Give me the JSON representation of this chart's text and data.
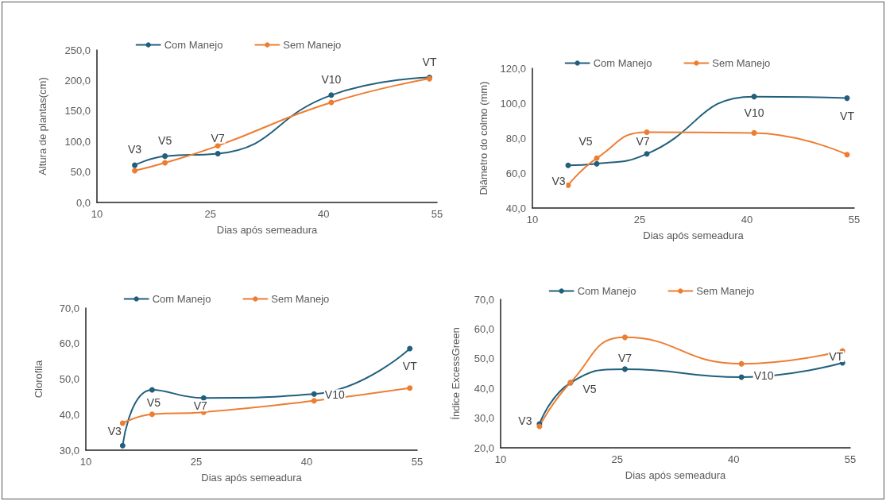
{
  "chart_data": [
    {
      "type": "line",
      "xlabel": "Dias após semeadura",
      "ylabel": "Altura de plantas(cm)",
      "x": [
        15,
        19,
        26,
        41,
        54
      ],
      "xlim": [
        10,
        55
      ],
      "xticks": [
        10,
        25,
        40,
        55
      ],
      "ylim": [
        0,
        250
      ],
      "yticks": [
        {
          "value": 0,
          "label": "0,0"
        },
        {
          "value": 50,
          "label": "50,0"
        },
        {
          "value": 100,
          "label": "100,0"
        },
        {
          "value": 150,
          "label": "150,0"
        },
        {
          "value": 200,
          "label": "200,0"
        },
        {
          "value": 250,
          "label": "250,0"
        }
      ],
      "grid": false,
      "legend": "top",
      "marker": "circle",
      "series": [
        {
          "name": "Com Manejo",
          "color": "#215f7d",
          "values": [
            61,
            76,
            80,
            176,
            205
          ]
        },
        {
          "name": "Sem Manejo",
          "color": "#ed7d31",
          "values": [
            52,
            65,
            93,
            164,
            203
          ]
        }
      ],
      "annotations": [
        {
          "text": "V3",
          "x": 15,
          "y": 61
        },
        {
          "text": "V5",
          "x": 19,
          "y": 76
        },
        {
          "text": "V7",
          "x": 26,
          "y": 80
        },
        {
          "text": "V10",
          "x": 41,
          "y": 176
        },
        {
          "text": "VT",
          "x": 54,
          "y": 205
        }
      ]
    },
    {
      "type": "line",
      "xlabel": "Dias após semeadura",
      "ylabel": "Diâmetro do colmo (mm)",
      "x": [
        15,
        19,
        26,
        41,
        54
      ],
      "xlim": [
        10,
        55
      ],
      "xticks": [
        10,
        25,
        40,
        55
      ],
      "ylim": [
        40,
        120
      ],
      "yticks": [
        {
          "value": 40,
          "label": "40,0"
        },
        {
          "value": 60,
          "label": "60,0"
        },
        {
          "value": 80,
          "label": "80,0"
        },
        {
          "value": 100,
          "label": "100,0"
        },
        {
          "value": 120,
          "label": "120,0"
        }
      ],
      "grid": false,
      "legend": "top",
      "marker": "circle",
      "series": [
        {
          "name": "Com Manejo",
          "color": "#215f7d",
          "values": [
            64.4,
            65.3,
            71,
            103.8,
            102.9
          ]
        },
        {
          "name": "Sem Manejo",
          "color": "#ed7d31",
          "values": [
            53.1,
            68.5,
            83.4,
            83,
            70.6
          ]
        }
      ],
      "annotations": [
        {
          "text": "V3",
          "x": 15,
          "y": 64.4
        },
        {
          "text": "V5",
          "x": 19,
          "y": 65.3
        },
        {
          "text": "V7",
          "x": 26,
          "y": 71
        },
        {
          "text": "V10",
          "x": 41,
          "y": 103.8
        },
        {
          "text": "VT",
          "x": 54,
          "y": 102.9
        }
      ]
    },
    {
      "type": "line",
      "xlabel": "Dias após semeadura",
      "ylabel": "Clorofila",
      "x": [
        15,
        19,
        26,
        41,
        54
      ],
      "xlim": [
        10,
        55
      ],
      "xticks": [
        10,
        25,
        40,
        55
      ],
      "ylim": [
        30,
        70
      ],
      "yticks": [
        {
          "value": 30,
          "label": "30,0"
        },
        {
          "value": 40,
          "label": "40,0"
        },
        {
          "value": 50,
          "label": "50,0"
        },
        {
          "value": 60,
          "label": "60,0"
        },
        {
          "value": 70,
          "label": "70,0"
        }
      ],
      "grid": false,
      "legend": "top",
      "marker": "circle",
      "series": [
        {
          "name": "Com Manejo",
          "color": "#215f7d",
          "values": [
            31.3,
            47,
            44.7,
            45.8,
            58.6
          ]
        },
        {
          "name": "Sem Manejo",
          "color": "#ed7d31",
          "values": [
            37.6,
            40.1,
            40.7,
            43.9,
            47.5
          ]
        }
      ],
      "annotations": [
        {
          "text": "V3",
          "x": 15,
          "y": 31.3
        },
        {
          "text": "V5",
          "x": 19,
          "y": 47
        },
        {
          "text": "V7",
          "x": 26,
          "y": 44.7
        },
        {
          "text": "V10",
          "x": 41,
          "y": 45.8
        },
        {
          "text": "VT",
          "x": 54,
          "y": 58.6
        }
      ]
    },
    {
      "type": "line",
      "xlabel": "Dias após semeadura",
      "ylabel": "Índice ExcessGreen",
      "x": [
        15,
        19,
        26,
        41,
        54
      ],
      "xlim": [
        10,
        55
      ],
      "xticks": [
        10,
        25,
        40,
        55
      ],
      "ylim": [
        20,
        70
      ],
      "yticks": [
        {
          "value": 20,
          "label": "20,0"
        },
        {
          "value": 30,
          "label": "30,0"
        },
        {
          "value": 40,
          "label": "40,0"
        },
        {
          "value": 50,
          "label": "50,0"
        },
        {
          "value": 60,
          "label": "60,0"
        },
        {
          "value": 70,
          "label": "70,0"
        }
      ],
      "grid": false,
      "legend": "top",
      "marker": "circle",
      "series": [
        {
          "name": "Com Manejo",
          "color": "#215f7d",
          "values": [
            28,
            41.9,
            46.5,
            43.8,
            48.6
          ]
        },
        {
          "name": "Sem Manejo",
          "color": "#ed7d31",
          "values": [
            27.2,
            42,
            57.2,
            48.3,
            52.6
          ]
        }
      ],
      "annotations": [
        {
          "text": "V3",
          "x": 15,
          "y": 28
        },
        {
          "text": "V5",
          "x": 19,
          "y": 41.9
        },
        {
          "text": "V7",
          "x": 26,
          "y": 46.5
        },
        {
          "text": "V10",
          "x": 41,
          "y": 43.8
        },
        {
          "text": "VT",
          "x": 54,
          "y": 48.6
        }
      ]
    }
  ]
}
